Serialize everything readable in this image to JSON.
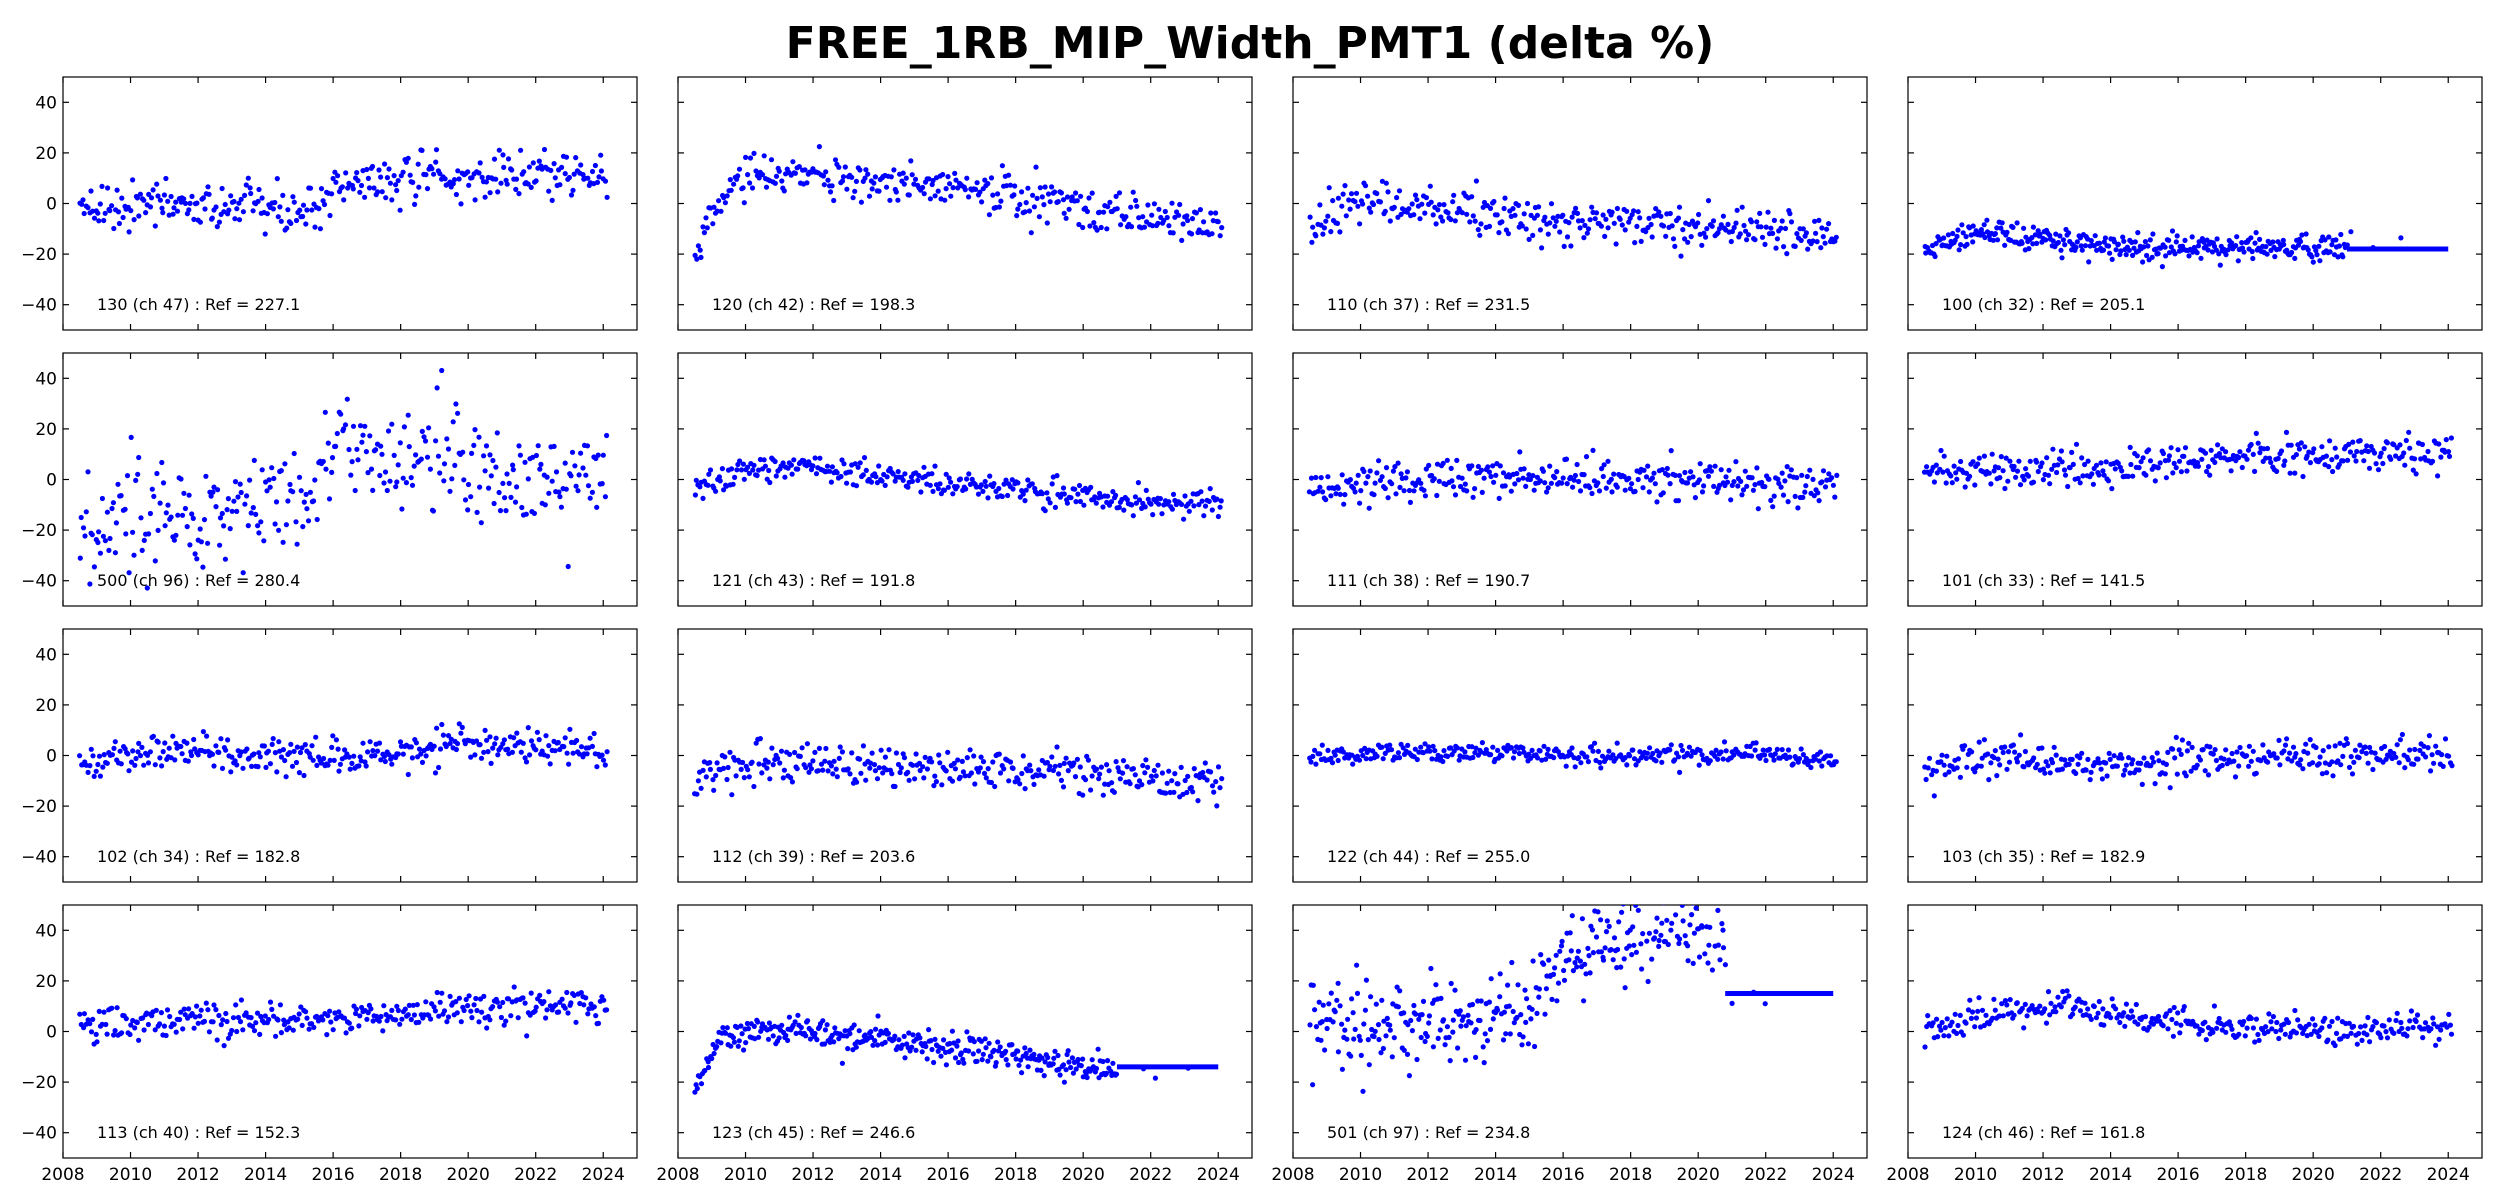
{
  "figure": {
    "title": "FREE_1RB_MIP_Width_PMT1 (delta %)"
  },
  "colors": {
    "points": "#0000ff"
  },
  "chart_data": {
    "type": "scatter",
    "grid": "off",
    "xlim": [
      2008,
      2025
    ],
    "ylim": [
      -50,
      50
    ],
    "x_ticks": [
      2008,
      2010,
      2012,
      2014,
      2016,
      2018,
      2020,
      2022,
      2024
    ],
    "y_ticks": [
      -40,
      -20,
      0,
      20,
      40
    ],
    "point_count_per_panel": 330,
    "panels": [
      {
        "label": "130 (ch 47) : Ref = 227.1",
        "profile": [
          [
            2008.5,
            1
          ],
          [
            2010,
            0
          ],
          [
            2012,
            -1
          ],
          [
            2014,
            -2
          ],
          [
            2015.5,
            -3
          ],
          [
            2016,
            7
          ],
          [
            2018,
            9
          ],
          [
            2020,
            9
          ],
          [
            2022,
            12
          ],
          [
            2024,
            11
          ]
        ],
        "noise": 4.5,
        "flat": null
      },
      {
        "label": "120 (ch 42) : Ref = 198.3",
        "profile": [
          [
            2008.5,
            -20
          ],
          [
            2009,
            -3
          ],
          [
            2010,
            10
          ],
          [
            2012,
            11
          ],
          [
            2014,
            9
          ],
          [
            2016,
            7
          ],
          [
            2018,
            3
          ],
          [
            2020,
            -2
          ],
          [
            2022,
            -5
          ],
          [
            2024,
            -8
          ]
        ],
        "noise": 4.0,
        "flat": null
      },
      {
        "label": "110 (ch 37) : Ref = 231.5",
        "profile": [
          [
            2008.5,
            -10
          ],
          [
            2010,
            2
          ],
          [
            2012,
            -2
          ],
          [
            2014,
            -5
          ],
          [
            2016,
            -7
          ],
          [
            2018,
            -8
          ],
          [
            2020,
            -10
          ],
          [
            2022,
            -12
          ],
          [
            2024,
            -12
          ]
        ],
        "noise": 4.5,
        "flat": null
      },
      {
        "label": "100 (ch 32) : Ref = 205.1",
        "profile": [
          [
            2008.5,
            -18
          ],
          [
            2010,
            -10
          ],
          [
            2012,
            -14
          ],
          [
            2014,
            -17
          ],
          [
            2016,
            -17
          ],
          [
            2018,
            -17
          ],
          [
            2020,
            -18
          ],
          [
            2021,
            -17
          ]
        ],
        "noise": 2.5,
        "flat": {
          "from": 2021,
          "to": 2024,
          "y": -18
        }
      },
      {
        "label": "500 (ch 96) : Ref = 280.4",
        "profile": [
          [
            2008.5,
            -18
          ],
          [
            2010,
            -15
          ],
          [
            2012,
            -15
          ],
          [
            2014,
            -10
          ],
          [
            2015.5,
            -5
          ],
          [
            2016,
            15
          ],
          [
            2018,
            5
          ],
          [
            2019.5,
            10
          ],
          [
            2020,
            3
          ],
          [
            2022,
            0
          ],
          [
            2024,
            2
          ]
        ],
        "noise": 11.0,
        "flat": null
      },
      {
        "label": "121 (ch 43) : Ref = 191.8",
        "profile": [
          [
            2008.5,
            -3
          ],
          [
            2010,
            5
          ],
          [
            2012,
            4
          ],
          [
            2014,
            2
          ],
          [
            2016,
            -2
          ],
          [
            2018,
            -4
          ],
          [
            2020,
            -7
          ],
          [
            2022,
            -9
          ],
          [
            2024,
            -10
          ]
        ],
        "noise": 2.5,
        "flat": null
      },
      {
        "label": "111 (ch 38) : Ref = 190.7",
        "profile": [
          [
            2008.5,
            -5
          ],
          [
            2010,
            -2
          ],
          [
            2012,
            0
          ],
          [
            2014,
            0
          ],
          [
            2016,
            1
          ],
          [
            2018,
            0
          ],
          [
            2020,
            0
          ],
          [
            2022,
            -2
          ],
          [
            2024,
            -3
          ]
        ],
        "noise": 4.0,
        "flat": null
      },
      {
        "label": "101 (ch 33) : Ref = 141.5",
        "profile": [
          [
            2008.5,
            2
          ],
          [
            2010,
            4
          ],
          [
            2012,
            4
          ],
          [
            2014,
            5
          ],
          [
            2016,
            7
          ],
          [
            2018,
            9
          ],
          [
            2020,
            9
          ],
          [
            2022,
            10
          ],
          [
            2024,
            11
          ]
        ],
        "noise": 3.5,
        "flat": null
      },
      {
        "label": "102 (ch 34) : Ref = 182.8",
        "profile": [
          [
            2008.5,
            -3
          ],
          [
            2010,
            0
          ],
          [
            2012,
            2
          ],
          [
            2014,
            -1
          ],
          [
            2016,
            0
          ],
          [
            2018,
            0
          ],
          [
            2020,
            5
          ],
          [
            2022,
            4
          ],
          [
            2024,
            1
          ]
        ],
        "noise": 3.5,
        "flat": null
      },
      {
        "label": "112 (ch 39) : Ref = 203.6",
        "profile": [
          [
            2008.5,
            -12
          ],
          [
            2009.5,
            -2
          ],
          [
            2012,
            -3
          ],
          [
            2014,
            -4
          ],
          [
            2016,
            -5
          ],
          [
            2018,
            -6
          ],
          [
            2020,
            -7
          ],
          [
            2022,
            -9
          ],
          [
            2024,
            -10
          ]
        ],
        "noise": 4.0,
        "flat": null
      },
      {
        "label": "122 (ch 44) : Ref = 255.0",
        "profile": [
          [
            2008.5,
            0
          ],
          [
            2010,
            1
          ],
          [
            2012,
            2
          ],
          [
            2014,
            1
          ],
          [
            2016,
            0
          ],
          [
            2018,
            0
          ],
          [
            2020,
            0
          ],
          [
            2022,
            1
          ],
          [
            2024,
            -2
          ]
        ],
        "noise": 1.8,
        "flat": null
      },
      {
        "label": "103 (ch 35) : Ref = 182.9",
        "profile": [
          [
            2008.5,
            -6
          ],
          [
            2010,
            -1
          ],
          [
            2012,
            -2
          ],
          [
            2014,
            -4
          ],
          [
            2016,
            -3
          ],
          [
            2018,
            -1
          ],
          [
            2020,
            -1
          ],
          [
            2022,
            0
          ],
          [
            2024,
            0
          ]
        ],
        "noise": 3.5,
        "flat": null
      },
      {
        "label": "113 (ch 40) : Ref = 152.3",
        "profile": [
          [
            2008.5,
            2
          ],
          [
            2010,
            4
          ],
          [
            2012,
            4
          ],
          [
            2014,
            4
          ],
          [
            2016,
            6
          ],
          [
            2018,
            7
          ],
          [
            2020,
            9
          ],
          [
            2022,
            10
          ],
          [
            2024,
            10
          ]
        ],
        "noise": 3.5,
        "flat": null
      },
      {
        "label": "123 (ch 45) : Ref = 246.6",
        "profile": [
          [
            2008.5,
            -25
          ],
          [
            2009.3,
            -1
          ],
          [
            2010,
            1
          ],
          [
            2012,
            0
          ],
          [
            2014,
            -3
          ],
          [
            2016,
            -6
          ],
          [
            2018,
            -10
          ],
          [
            2020,
            -15
          ],
          [
            2021,
            -14
          ]
        ],
        "noise": 3.0,
        "flat": {
          "from": 2021,
          "to": 2024,
          "y": -14
        }
      },
      {
        "label": "501 (ch 97) : Ref = 234.8",
        "profile": [
          [
            2008.5,
            5
          ],
          [
            2010,
            3
          ],
          [
            2012,
            4
          ],
          [
            2014,
            4
          ],
          [
            2015,
            10
          ],
          [
            2016,
            30
          ],
          [
            2018,
            38
          ],
          [
            2020,
            42
          ],
          [
            2020.8,
            38
          ]
        ],
        "noise": 9.0,
        "flat": {
          "from": 2020.8,
          "to": 2024,
          "y": 15
        }
      },
      {
        "label": "124 (ch 46) : Ref = 161.8",
        "profile": [
          [
            2008.5,
            -2
          ],
          [
            2010,
            6
          ],
          [
            2012,
            10
          ],
          [
            2014,
            7
          ],
          [
            2016,
            4
          ],
          [
            2018,
            2
          ],
          [
            2020,
            0
          ],
          [
            2022,
            1
          ],
          [
            2024,
            3
          ]
        ],
        "noise": 3.0,
        "flat": null
      }
    ]
  }
}
